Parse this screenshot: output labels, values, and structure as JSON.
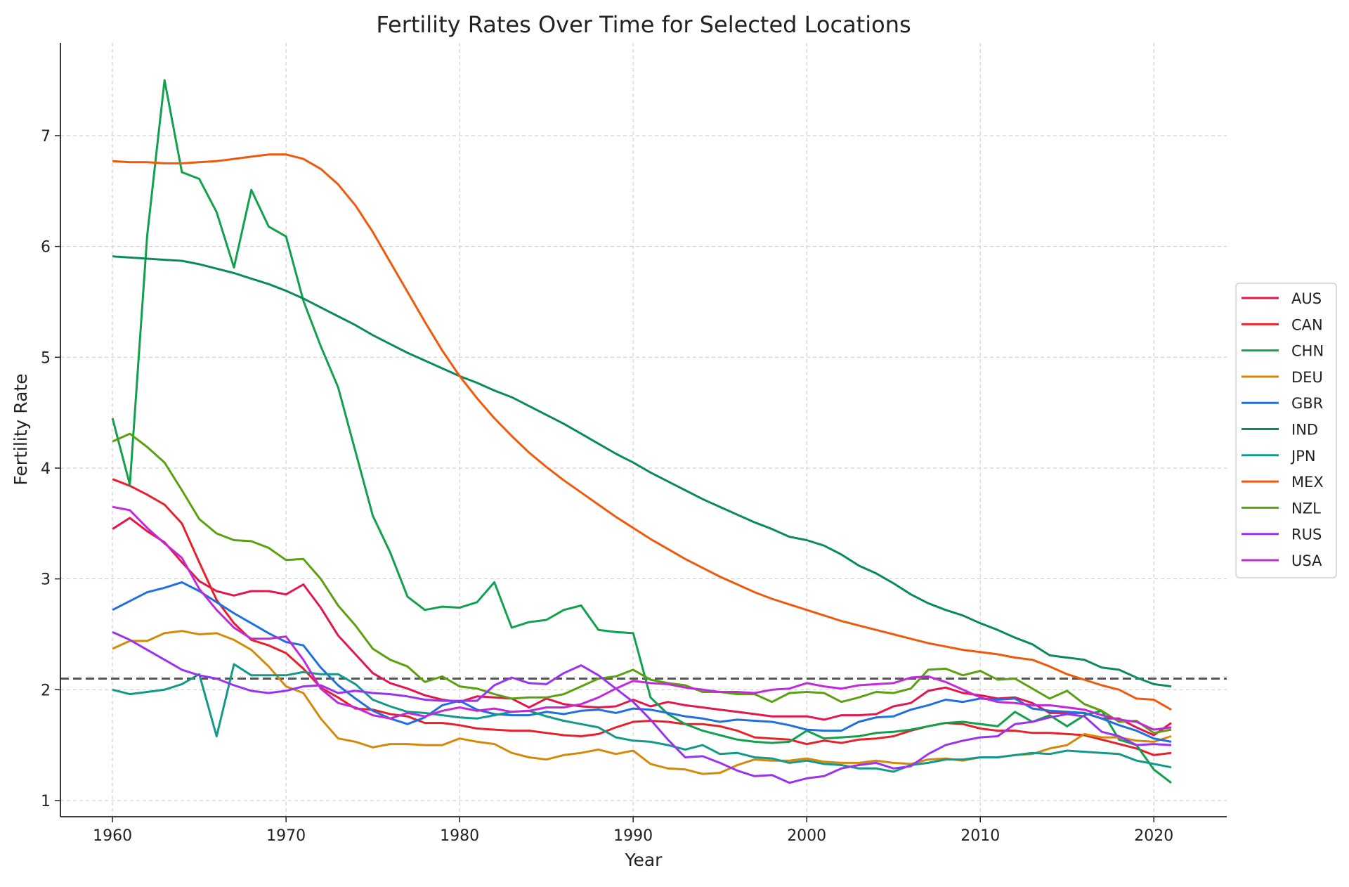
{
  "chart_data": {
    "type": "line",
    "title": "Fertility Rates Over Time for Selected Locations",
    "xlabel": "Year",
    "ylabel": "Fertility Rate",
    "xlim": [
      1957,
      2024.2
    ],
    "ylim": [
      0.854,
      7.837
    ],
    "xticks": [
      1960,
      1970,
      1980,
      1990,
      2000,
      2010,
      2020
    ],
    "yticks": [
      1,
      2,
      3,
      4,
      5,
      6,
      7
    ],
    "grid": true,
    "legend_placement": "right-center",
    "reference_line": {
      "value": 2.1,
      "style": "dashed",
      "color": "#555555"
    },
    "x_start": 1960,
    "x_end": 2021,
    "series": [
      {
        "name": "AUS",
        "color": "#e3174a",
        "values": [
          3.45,
          3.55,
          3.43,
          3.33,
          3.15,
          2.98,
          2.89,
          2.85,
          2.89,
          2.89,
          2.86,
          2.95,
          2.74,
          2.49,
          2.32,
          2.15,
          2.06,
          2.01,
          1.95,
          1.91,
          1.89,
          1.94,
          1.93,
          1.92,
          1.84,
          1.92,
          1.87,
          1.85,
          1.84,
          1.85,
          1.91,
          1.85,
          1.89,
          1.86,
          1.84,
          1.82,
          1.8,
          1.78,
          1.76,
          1.76,
          1.76,
          1.73,
          1.77,
          1.77,
          1.78,
          1.85,
          1.88,
          1.99,
          2.02,
          1.97,
          1.95,
          1.92,
          1.93,
          1.88,
          1.79,
          1.79,
          1.79,
          1.74,
          1.74,
          1.66,
          1.59,
          1.7
        ]
      },
      {
        "name": "CAN",
        "color": "#e8202a",
        "values": [
          3.9,
          3.84,
          3.76,
          3.67,
          3.5,
          3.15,
          2.81,
          2.6,
          2.45,
          2.4,
          2.33,
          2.19,
          2.02,
          1.93,
          1.83,
          1.82,
          1.78,
          1.76,
          1.7,
          1.7,
          1.68,
          1.65,
          1.64,
          1.63,
          1.63,
          1.61,
          1.59,
          1.58,
          1.6,
          1.66,
          1.71,
          1.72,
          1.71,
          1.69,
          1.69,
          1.67,
          1.63,
          1.57,
          1.56,
          1.55,
          1.51,
          1.54,
          1.52,
          1.55,
          1.56,
          1.58,
          1.63,
          1.67,
          1.7,
          1.69,
          1.65,
          1.63,
          1.63,
          1.61,
          1.61,
          1.6,
          1.59,
          1.55,
          1.51,
          1.47,
          1.41,
          1.43
        ]
      },
      {
        "name": "CHN",
        "color": "#12a04c",
        "values": [
          4.45,
          3.85,
          6.1,
          7.5,
          6.67,
          6.61,
          6.31,
          5.81,
          6.51,
          6.18,
          6.09,
          5.51,
          5.1,
          4.73,
          4.15,
          3.57,
          3.24,
          2.84,
          2.72,
          2.75,
          2.74,
          2.79,
          2.97,
          2.56,
          2.61,
          2.63,
          2.72,
          2.76,
          2.54,
          2.52,
          2.51,
          1.93,
          1.78,
          1.69,
          1.63,
          1.59,
          1.55,
          1.53,
          1.52,
          1.53,
          1.63,
          1.56,
          1.57,
          1.58,
          1.61,
          1.62,
          1.64,
          1.67,
          1.7,
          1.71,
          1.69,
          1.67,
          1.8,
          1.71,
          1.77,
          1.67,
          1.77,
          1.81,
          1.55,
          1.5,
          1.28,
          1.16
        ]
      },
      {
        "name": "DEU",
        "color": "#d4890a",
        "values": [
          2.37,
          2.44,
          2.44,
          2.51,
          2.53,
          2.5,
          2.51,
          2.45,
          2.36,
          2.21,
          2.03,
          1.97,
          1.74,
          1.56,
          1.53,
          1.48,
          1.51,
          1.51,
          1.5,
          1.5,
          1.56,
          1.53,
          1.51,
          1.43,
          1.39,
          1.37,
          1.41,
          1.43,
          1.46,
          1.42,
          1.45,
          1.33,
          1.29,
          1.28,
          1.24,
          1.25,
          1.32,
          1.37,
          1.36,
          1.36,
          1.38,
          1.35,
          1.34,
          1.34,
          1.36,
          1.34,
          1.33,
          1.37,
          1.38,
          1.36,
          1.39,
          1.39,
          1.41,
          1.42,
          1.47,
          1.5,
          1.6,
          1.57,
          1.57,
          1.54,
          1.53,
          1.58
        ]
      },
      {
        "name": "GBR",
        "color": "#1f6fe0",
        "values": [
          2.72,
          2.8,
          2.88,
          2.92,
          2.97,
          2.89,
          2.79,
          2.69,
          2.6,
          2.51,
          2.43,
          2.4,
          2.2,
          2.04,
          1.92,
          1.81,
          1.74,
          1.69,
          1.75,
          1.86,
          1.9,
          1.82,
          1.78,
          1.77,
          1.77,
          1.8,
          1.78,
          1.81,
          1.82,
          1.79,
          1.83,
          1.82,
          1.79,
          1.76,
          1.74,
          1.71,
          1.73,
          1.72,
          1.71,
          1.68,
          1.64,
          1.63,
          1.63,
          1.71,
          1.75,
          1.76,
          1.82,
          1.86,
          1.91,
          1.89,
          1.92,
          1.91,
          1.92,
          1.83,
          1.81,
          1.8,
          1.79,
          1.74,
          1.68,
          1.63,
          1.56,
          1.53
        ]
      },
      {
        "name": "IND",
        "color": "#0b8a5e",
        "values": [
          5.91,
          5.9,
          5.89,
          5.88,
          5.87,
          5.84,
          5.8,
          5.76,
          5.71,
          5.66,
          5.6,
          5.53,
          5.45,
          5.37,
          5.29,
          5.2,
          5.12,
          5.04,
          4.97,
          4.9,
          4.83,
          4.77,
          4.7,
          4.64,
          4.56,
          4.48,
          4.4,
          4.31,
          4.22,
          4.13,
          4.05,
          3.96,
          3.88,
          3.8,
          3.72,
          3.65,
          3.58,
          3.51,
          3.45,
          3.38,
          3.35,
          3.3,
          3.22,
          3.12,
          3.05,
          2.96,
          2.86,
          2.78,
          2.72,
          2.67,
          2.6,
          2.54,
          2.47,
          2.41,
          2.31,
          2.29,
          2.27,
          2.2,
          2.18,
          2.11,
          2.05,
          2.03
        ]
      },
      {
        "name": "JPN",
        "color": "#12998a",
        "values": [
          2.0,
          1.96,
          1.98,
          2.0,
          2.05,
          2.14,
          1.58,
          2.23,
          2.13,
          2.13,
          2.13,
          2.16,
          2.14,
          2.14,
          2.05,
          1.91,
          1.85,
          1.8,
          1.79,
          1.77,
          1.75,
          1.74,
          1.77,
          1.8,
          1.81,
          1.76,
          1.72,
          1.69,
          1.66,
          1.57,
          1.54,
          1.53,
          1.5,
          1.46,
          1.5,
          1.42,
          1.43,
          1.39,
          1.38,
          1.34,
          1.36,
          1.33,
          1.32,
          1.29,
          1.29,
          1.26,
          1.32,
          1.34,
          1.37,
          1.37,
          1.39,
          1.39,
          1.41,
          1.43,
          1.42,
          1.45,
          1.44,
          1.43,
          1.42,
          1.36,
          1.33,
          1.3
        ]
      },
      {
        "name": "MEX",
        "color": "#f0580c",
        "values": [
          6.77,
          6.76,
          6.76,
          6.75,
          6.75,
          6.76,
          6.77,
          6.79,
          6.81,
          6.83,
          6.83,
          6.79,
          6.7,
          6.56,
          6.37,
          6.13,
          5.86,
          5.59,
          5.32,
          5.06,
          4.83,
          4.63,
          4.45,
          4.29,
          4.14,
          4.01,
          3.89,
          3.78,
          3.67,
          3.56,
          3.46,
          3.36,
          3.27,
          3.18,
          3.1,
          3.02,
          2.95,
          2.88,
          2.82,
          2.77,
          2.72,
          2.67,
          2.62,
          2.58,
          2.54,
          2.5,
          2.46,
          2.42,
          2.39,
          2.36,
          2.34,
          2.32,
          2.29,
          2.27,
          2.21,
          2.14,
          2.09,
          2.04,
          2.0,
          1.92,
          1.91,
          1.82
        ]
      },
      {
        "name": "NZL",
        "color": "#5aa010",
        "values": [
          4.24,
          4.31,
          4.19,
          4.05,
          3.8,
          3.54,
          3.41,
          3.35,
          3.34,
          3.28,
          3.17,
          3.18,
          3.0,
          2.76,
          2.58,
          2.37,
          2.27,
          2.21,
          2.07,
          2.12,
          2.03,
          2.01,
          1.96,
          1.92,
          1.93,
          1.93,
          1.96,
          2.03,
          2.1,
          2.12,
          2.18,
          2.09,
          2.06,
          2.04,
          1.98,
          1.98,
          1.96,
          1.96,
          1.89,
          1.97,
          1.98,
          1.97,
          1.89,
          1.93,
          1.98,
          1.97,
          2.01,
          2.18,
          2.19,
          2.13,
          2.17,
          2.09,
          2.1,
          2.01,
          1.92,
          1.99,
          1.87,
          1.81,
          1.71,
          1.72,
          1.61,
          1.64
        ]
      },
      {
        "name": "RUS",
        "color": "#9a32f0",
        "values": [
          2.52,
          2.45,
          2.36,
          2.27,
          2.18,
          2.13,
          2.1,
          2.04,
          1.99,
          1.97,
          1.99,
          2.03,
          2.04,
          1.97,
          1.99,
          1.97,
          1.96,
          1.94,
          1.91,
          1.9,
          1.9,
          1.9,
          2.04,
          2.11,
          2.06,
          2.05,
          2.15,
          2.22,
          2.13,
          2.01,
          1.89,
          1.73,
          1.55,
          1.39,
          1.4,
          1.34,
          1.27,
          1.22,
          1.23,
          1.16,
          1.2,
          1.22,
          1.29,
          1.32,
          1.34,
          1.29,
          1.31,
          1.42,
          1.5,
          1.54,
          1.57,
          1.58,
          1.69,
          1.71,
          1.75,
          1.78,
          1.76,
          1.62,
          1.58,
          1.5,
          1.51,
          1.5
        ]
      },
      {
        "name": "USA",
        "color": "#c22ad8",
        "values": [
          3.65,
          3.62,
          3.46,
          3.32,
          3.19,
          2.91,
          2.72,
          2.56,
          2.46,
          2.46,
          2.48,
          2.27,
          2.01,
          1.88,
          1.84,
          1.77,
          1.74,
          1.79,
          1.76,
          1.81,
          1.84,
          1.81,
          1.83,
          1.8,
          1.81,
          1.84,
          1.84,
          1.87,
          1.93,
          2.01,
          2.08,
          2.06,
          2.05,
          2.02,
          2.0,
          1.98,
          1.98,
          1.97,
          2.0,
          2.01,
          2.06,
          2.03,
          2.01,
          2.04,
          2.05,
          2.06,
          2.11,
          2.12,
          2.07,
          2.0,
          1.93,
          1.89,
          1.88,
          1.86,
          1.86,
          1.84,
          1.82,
          1.77,
          1.73,
          1.71,
          1.64,
          1.66
        ]
      }
    ]
  }
}
